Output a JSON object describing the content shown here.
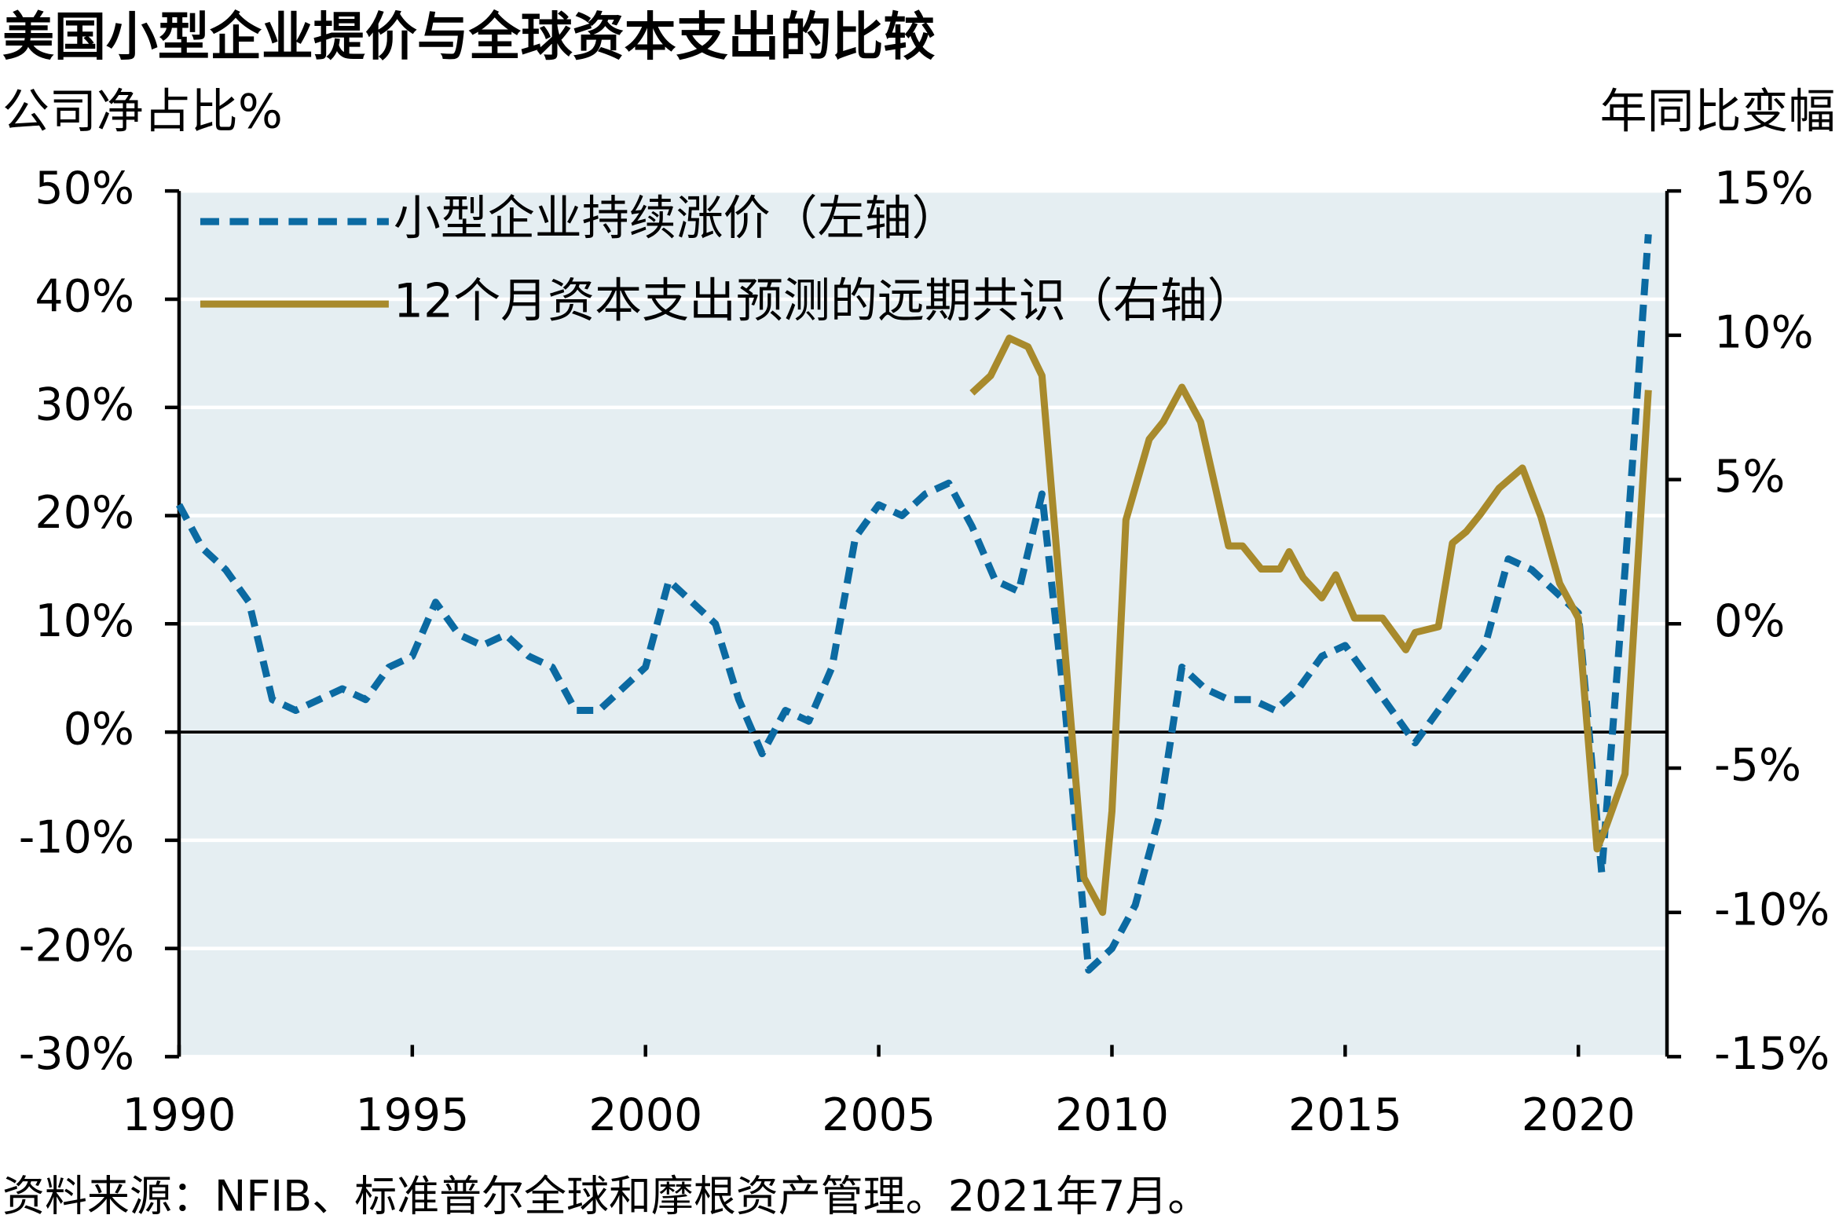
{
  "chart_data": {
    "type": "line",
    "title": "美国小型企业提价与全球资本支出的比较",
    "y_label": "公司净占比%",
    "y2_label": "年同比变幅",
    "source": "资料来源：NFIB、标准普尔全球和摩根资产管理。2021年7月。",
    "xlim": [
      1990,
      2021.9
    ],
    "xticks": [
      1990,
      1995,
      2000,
      2005,
      2010,
      2015,
      2020
    ],
    "ylim": [
      -30,
      50
    ],
    "yticks": [
      {
        "value": -30,
        "label": "-30%"
      },
      {
        "value": -20,
        "label": "-20%"
      },
      {
        "value": -10,
        "label": "-10%"
      },
      {
        "value": 0,
        "label": "0%"
      },
      {
        "value": 10,
        "label": "10%"
      },
      {
        "value": 20,
        "label": "20%"
      },
      {
        "value": 30,
        "label": "30%"
      },
      {
        "value": 40,
        "label": "40%"
      },
      {
        "value": 50,
        "label": "50%"
      }
    ],
    "y2lim": [
      -15,
      15
    ],
    "y2ticks": [
      {
        "value": -15,
        "label": "-15%"
      },
      {
        "value": -10,
        "label": "-10%"
      },
      {
        "value": -5,
        "label": "-5%"
      },
      {
        "value": 0,
        "label": "0%"
      },
      {
        "value": 5,
        "label": "5%"
      },
      {
        "value": 10,
        "label": "10%"
      },
      {
        "value": 15,
        "label": "15%"
      }
    ],
    "grid": true,
    "legend": "upper left",
    "series": [
      {
        "name": "小型企业持续涨价（左轴）",
        "color": "#0b6aa2",
        "dashed": true,
        "x": [
          1990,
          1990.5,
          1991,
          1991.5,
          1992,
          1992.5,
          1993,
          1993.5,
          1994,
          1994.5,
          1995,
          1995.5,
          1996,
          1996.5,
          1997,
          1997.5,
          1998,
          1998.5,
          1999,
          1999.5,
          2000,
          2000.5,
          2001,
          2001.5,
          2002,
          2002.5,
          2003,
          2003.5,
          2004,
          2004.5,
          2005,
          2005.5,
          2006,
          2006.5,
          2007,
          2007.5,
          2008,
          2008.5,
          2009,
          2009.5,
          2010,
          2010.5,
          2011,
          2011.5,
          2012,
          2012.5,
          2013,
          2013.5,
          2014,
          2014.5,
          2015,
          2015.5,
          2016,
          2016.5,
          2017,
          2017.5,
          2018,
          2018.5,
          2019,
          2019.5,
          2020,
          2020.5,
          2021,
          2021.5
        ],
        "values": [
          21,
          17,
          15,
          12,
          3,
          2,
          3,
          4,
          3,
          6,
          7,
          12,
          9,
          8,
          9,
          7,
          6,
          2,
          2,
          4,
          6,
          14,
          12,
          10,
          3,
          -2,
          2,
          1,
          6,
          18,
          21,
          20,
          22,
          23,
          19,
          14,
          13,
          22,
          2,
          -22,
          -20,
          -16,
          -8,
          6,
          4,
          3,
          3,
          2,
          4,
          7,
          8,
          5,
          2,
          -1,
          2,
          5,
          8,
          16,
          15,
          13,
          11,
          -13,
          15,
          46
        ]
      },
      {
        "name": "12个月资本支出预测的远期共识（右轴）",
        "color": "#a88a2c",
        "axis": "y2",
        "x": [
          2007,
          2007.4,
          2007.8,
          2008.2,
          2008.5,
          2009.4,
          2009.8,
          2010,
          2010.3,
          2010.8,
          2011.1,
          2011.5,
          2011.9,
          2012.5,
          2012.8,
          2013.2,
          2013.6,
          2013.8,
          2014.1,
          2014.5,
          2014.8,
          2015.2,
          2015.8,
          2016.3,
          2016.5,
          2017,
          2017.3,
          2017.6,
          2017.9,
          2018.3,
          2018.8,
          2019.2,
          2019.6,
          2020,
          2020.4,
          2020.6,
          2021,
          2021.5
        ],
        "values": [
          8.0,
          8.6,
          9.9,
          9.6,
          8.6,
          -8.8,
          -10.0,
          -6.5,
          3.6,
          6.4,
          7.0,
          8.2,
          7.0,
          2.7,
          2.7,
          1.9,
          1.9,
          2.5,
          1.6,
          0.9,
          1.7,
          0.2,
          0.2,
          -0.9,
          -0.3,
          -0.1,
          2.8,
          3.2,
          3.8,
          4.7,
          5.4,
          3.7,
          1.4,
          0.2,
          -7.8,
          -7.0,
          -5.2,
          8.1
        ]
      }
    ]
  }
}
